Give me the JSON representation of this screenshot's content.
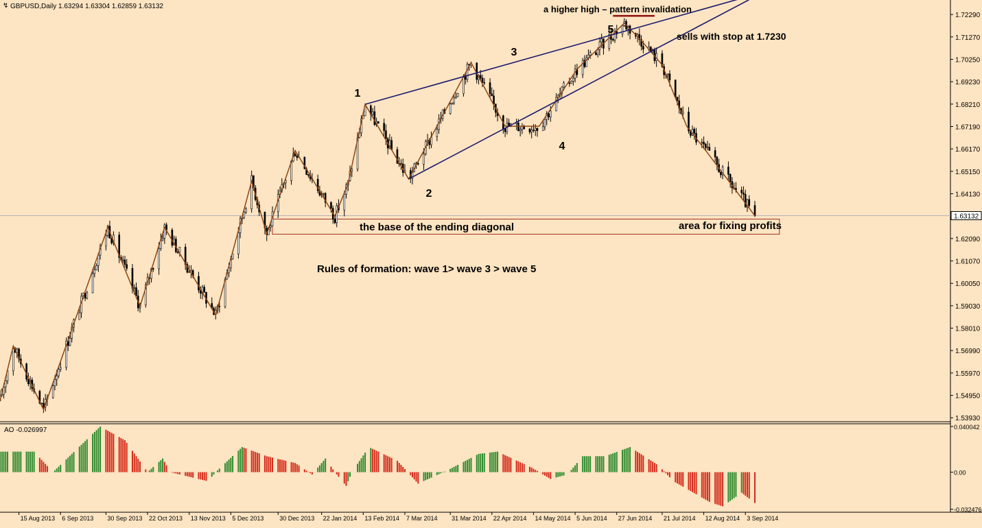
{
  "header": {
    "symbol_line": "GBPUSD,Daily  1.63294 1.63304 1.62859 1.63132"
  },
  "indicator": {
    "label": "AO -0.026997"
  },
  "colors": {
    "background": "#fde4c2",
    "candle": "#000000",
    "wave_line": "#8b4513",
    "channel_line": "#1a1a6e",
    "ao_up": "#2e8b2e",
    "ao_down": "#d42a1a",
    "invalidation_line": "#8b1010",
    "box_border": "#a03020"
  },
  "annotations": {
    "wave1": "1",
    "wave2": "2",
    "wave3": "3",
    "wave4": "4",
    "wave5": "5",
    "invalidation": "a higher high – pattern invalidation",
    "sells": "sells with stop at 1.7230",
    "base": "the base of the ending diagonal",
    "profits": "area for fixing profits",
    "rules": "Rules of formation: wave 1> wave 3 > wave 5"
  },
  "chart_data": [
    {
      "type": "candlestick",
      "symbol": "GBPUSD",
      "timeframe": "Daily",
      "ohlc_last": {
        "open": 1.63294,
        "high": 1.63304,
        "low": 1.62859,
        "close": 1.63132
      },
      "current_price_label": "1.63132",
      "ylim": [
        1.5375,
        1.7295
      ],
      "y_ticks": [
        "1.72290",
        "1.71270",
        "1.70250",
        "1.69230",
        "1.68210",
        "1.67190",
        "1.66170",
        "1.65150",
        "1.64130",
        "1.62090",
        "1.61070",
        "1.60050",
        "1.59030",
        "1.58010",
        "1.56990",
        "1.55970",
        "1.54950",
        "1.53930"
      ],
      "x_ticks": [
        "15 Aug 2013",
        "6 Sep 2013",
        "30 Sep 2013",
        "22 Oct 2013",
        "13 Nov 2013",
        "5 Dec 2013",
        "30 Dec 2013",
        "22 Jan 2014",
        "13 Feb 2014",
        "7 Mar 2014",
        "31 Mar 2014",
        "22 Apr 2014",
        "14 May 2014",
        "5 Jun 2014",
        "27 Jun 2014",
        "21 Jul 2014",
        "12 Aug 2014",
        "3 Sep 2014"
      ],
      "x_range": [
        "2013-08-05",
        "2014-09-08"
      ],
      "zigzag": [
        [
          "2013-08-05",
          1.547
        ],
        [
          "2013-08-12",
          1.572
        ],
        [
          "2013-08-28",
          1.543
        ],
        [
          "2013-10-01",
          1.626
        ],
        [
          "2013-10-18",
          1.59
        ],
        [
          "2013-10-31",
          1.626
        ],
        [
          "2013-11-27",
          1.586
        ],
        [
          "2013-12-16",
          1.647
        ],
        [
          "2013-12-24",
          1.623
        ],
        [
          "2014-01-08",
          1.661
        ],
        [
          "2014-01-29",
          1.631
        ],
        [
          "2014-02-05",
          1.646
        ],
        [
          "2014-02-14",
          1.682
        ],
        [
          "2014-03-09",
          1.648
        ],
        [
          "2014-04-11",
          1.701
        ],
        [
          "2014-04-29",
          1.672
        ],
        [
          "2014-05-17",
          1.672
        ],
        [
          "2014-06-06",
          1.698
        ],
        [
          "2014-07-01",
          1.719
        ],
        [
          "2014-07-10",
          1.711
        ],
        [
          "2014-07-21",
          1.7
        ],
        [
          "2014-08-03",
          1.672
        ],
        [
          "2014-08-13",
          1.661
        ],
        [
          "2014-09-08",
          1.6313
        ]
      ],
      "trendlines": [
        {
          "from": [
            "2014-02-14",
            1.682
          ],
          "to": [
            "2014-09-04",
            1.731
          ]
        },
        {
          "from": [
            "2014-03-09",
            1.648
          ],
          "to": [
            "2014-09-08",
            1.731
          ]
        }
      ],
      "invalidation_segment": {
        "from": "2014-06-25",
        "to": "2014-07-17",
        "price": 1.7223
      },
      "zone": {
        "from": "2013-12-27",
        "to": "2014-09-21",
        "top": 1.631,
        "bottom": 1.626
      }
    },
    {
      "type": "bar",
      "name": "AO",
      "current_value": -0.026997,
      "ylim": [
        -0.0345,
        0.0418
      ],
      "y_ticks": [
        "0.040042",
        "0.00",
        "-0.032476"
      ],
      "profile": [
        [
          "2013-08-05",
          0.018
        ],
        [
          "2013-08-23",
          0.018
        ],
        [
          "2013-09-02",
          0.0
        ],
        [
          "2013-09-27",
          0.04
        ],
        [
          "2013-10-10",
          0.028
        ],
        [
          "2013-10-22",
          0.0
        ],
        [
          "2013-10-30",
          0.012
        ],
        [
          "2013-11-03",
          0.0
        ],
        [
          "2013-11-23",
          -0.008
        ],
        [
          "2013-11-27",
          0.0
        ],
        [
          "2013-12-11",
          0.022
        ],
        [
          "2013-12-24",
          0.014
        ],
        [
          "2014-01-08",
          0.008
        ],
        [
          "2014-01-17",
          -0.002
        ],
        [
          "2014-01-24",
          0.012
        ],
        [
          "2014-01-29",
          0.0
        ],
        [
          "2014-02-04",
          -0.012
        ],
        [
          "2014-02-07",
          0.0
        ],
        [
          "2014-02-16",
          0.022
        ],
        [
          "2014-03-03",
          0.01
        ],
        [
          "2014-03-14",
          -0.01
        ],
        [
          "2014-03-30",
          0.002
        ],
        [
          "2014-04-15",
          0.016
        ],
        [
          "2014-04-25",
          0.018
        ],
        [
          "2014-05-13",
          0.004
        ],
        [
          "2014-05-23",
          -0.006
        ],
        [
          "2014-06-01",
          -0.002
        ],
        [
          "2014-06-09",
          0.014
        ],
        [
          "2014-06-21",
          0.014
        ],
        [
          "2014-07-04",
          0.022
        ],
        [
          "2014-07-19",
          0.006
        ],
        [
          "2014-07-27",
          -0.008
        ],
        [
          "2014-08-15",
          -0.026
        ],
        [
          "2014-08-22",
          -0.03
        ],
        [
          "2014-09-01",
          -0.018
        ],
        [
          "2014-09-08",
          -0.027
        ]
      ]
    }
  ]
}
